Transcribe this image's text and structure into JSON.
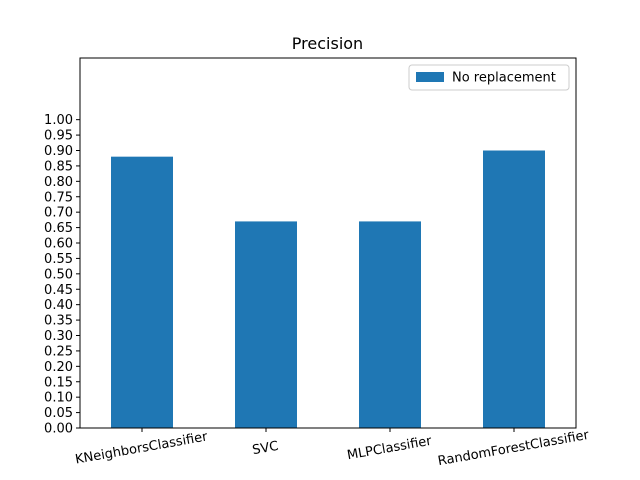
{
  "chart_data": {
    "type": "bar",
    "title": "Precision",
    "categories": [
      "KNeighborsClassifier",
      "SVC",
      "MLPClassifier",
      "RandomForestClassifier"
    ],
    "series": [
      {
        "name": "No replacement",
        "values": [
          0.88,
          0.67,
          0.67,
          0.9
        ],
        "color": "#1f77b4"
      }
    ],
    "ylim": [
      0,
      1.2
    ],
    "yticks": [
      "0.00",
      "0.05",
      "0.10",
      "0.15",
      "0.20",
      "0.25",
      "0.30",
      "0.35",
      "0.40",
      "0.45",
      "0.50",
      "0.55",
      "0.60",
      "0.65",
      "0.70",
      "0.75",
      "0.80",
      "0.85",
      "0.90",
      "0.95",
      "1.00"
    ],
    "xtick_rotation_deg": -10,
    "grid": false,
    "legend_position": "top-right"
  }
}
